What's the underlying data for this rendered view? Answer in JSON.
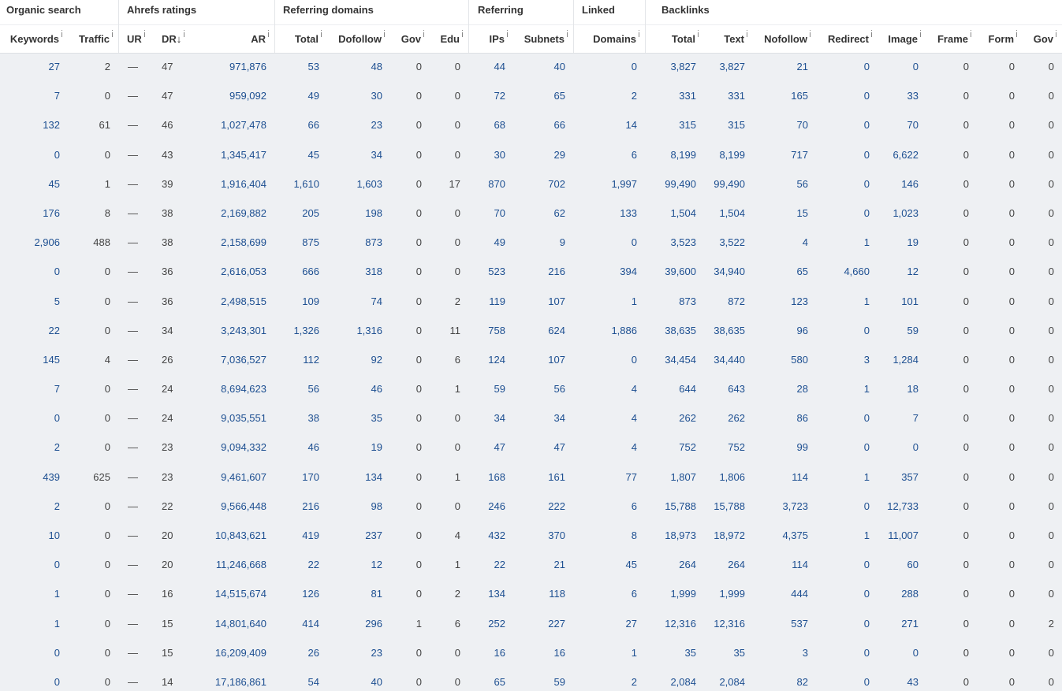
{
  "table": {
    "groups": [
      "Organic search",
      "Ahrefs ratings",
      "Referring domains",
      "Referring",
      "Linked",
      "Backlinks"
    ],
    "columns": [
      "Keywords",
      "Traffic",
      "UR",
      "DR↓",
      "AR",
      "Total",
      "Dofollow",
      "Gov",
      "Edu",
      "IPs",
      "Subnets",
      "Domains",
      "Total",
      "Text",
      "Nofollow",
      "Redirect",
      "Image",
      "Frame",
      "Form",
      "Gov"
    ],
    "rows": [
      [
        "27",
        "2",
        "—",
        "47",
        "971,876",
        "53",
        "48",
        "0",
        "0",
        "44",
        "40",
        "0",
        "3,827",
        "3,827",
        "21",
        "0",
        "0",
        "0",
        "0",
        "0"
      ],
      [
        "7",
        "0",
        "—",
        "47",
        "959,092",
        "49",
        "30",
        "0",
        "0",
        "72",
        "65",
        "2",
        "331",
        "331",
        "165",
        "0",
        "33",
        "0",
        "0",
        "0"
      ],
      [
        "132",
        "61",
        "—",
        "46",
        "1,027,478",
        "66",
        "23",
        "0",
        "0",
        "68",
        "66",
        "14",
        "315",
        "315",
        "70",
        "0",
        "70",
        "0",
        "0",
        "0"
      ],
      [
        "0",
        "0",
        "—",
        "43",
        "1,345,417",
        "45",
        "34",
        "0",
        "0",
        "30",
        "29",
        "6",
        "8,199",
        "8,199",
        "717",
        "0",
        "6,622",
        "0",
        "0",
        "0"
      ],
      [
        "45",
        "1",
        "—",
        "39",
        "1,916,404",
        "1,610",
        "1,603",
        "0",
        "17",
        "870",
        "702",
        "1,997",
        "99,490",
        "99,490",
        "56",
        "0",
        "146",
        "0",
        "0",
        "0"
      ],
      [
        "176",
        "8",
        "—",
        "38",
        "2,169,882",
        "205",
        "198",
        "0",
        "0",
        "70",
        "62",
        "133",
        "1,504",
        "1,504",
        "15",
        "0",
        "1,023",
        "0",
        "0",
        "0"
      ],
      [
        "2,906",
        "488",
        "—",
        "38",
        "2,158,699",
        "875",
        "873",
        "0",
        "0",
        "49",
        "9",
        "0",
        "3,523",
        "3,522",
        "4",
        "1",
        "19",
        "0",
        "0",
        "0"
      ],
      [
        "0",
        "0",
        "—",
        "36",
        "2,616,053",
        "666",
        "318",
        "0",
        "0",
        "523",
        "216",
        "394",
        "39,600",
        "34,940",
        "65",
        "4,660",
        "12",
        "0",
        "0",
        "0"
      ],
      [
        "5",
        "0",
        "—",
        "36",
        "2,498,515",
        "109",
        "74",
        "0",
        "2",
        "119",
        "107",
        "1",
        "873",
        "872",
        "123",
        "1",
        "101",
        "0",
        "0",
        "0"
      ],
      [
        "22",
        "0",
        "—",
        "34",
        "3,243,301",
        "1,326",
        "1,316",
        "0",
        "11",
        "758",
        "624",
        "1,886",
        "38,635",
        "38,635",
        "96",
        "0",
        "59",
        "0",
        "0",
        "0"
      ],
      [
        "145",
        "4",
        "—",
        "26",
        "7,036,527",
        "112",
        "92",
        "0",
        "6",
        "124",
        "107",
        "0",
        "34,454",
        "34,440",
        "580",
        "3",
        "1,284",
        "0",
        "0",
        "0"
      ],
      [
        "7",
        "0",
        "—",
        "24",
        "8,694,623",
        "56",
        "46",
        "0",
        "1",
        "59",
        "56",
        "4",
        "644",
        "643",
        "28",
        "1",
        "18",
        "0",
        "0",
        "0"
      ],
      [
        "0",
        "0",
        "—",
        "24",
        "9,035,551",
        "38",
        "35",
        "0",
        "0",
        "34",
        "34",
        "4",
        "262",
        "262",
        "86",
        "0",
        "7",
        "0",
        "0",
        "0"
      ],
      [
        "2",
        "0",
        "—",
        "23",
        "9,094,332",
        "46",
        "19",
        "0",
        "0",
        "47",
        "47",
        "4",
        "752",
        "752",
        "99",
        "0",
        "0",
        "0",
        "0",
        "0"
      ],
      [
        "439",
        "625",
        "—",
        "23",
        "9,461,607",
        "170",
        "134",
        "0",
        "1",
        "168",
        "161",
        "77",
        "1,807",
        "1,806",
        "114",
        "1",
        "357",
        "0",
        "0",
        "0"
      ],
      [
        "2",
        "0",
        "—",
        "22",
        "9,566,448",
        "216",
        "98",
        "0",
        "0",
        "246",
        "222",
        "6",
        "15,788",
        "15,788",
        "3,723",
        "0",
        "12,733",
        "0",
        "0",
        "0"
      ],
      [
        "10",
        "0",
        "—",
        "20",
        "10,843,621",
        "419",
        "237",
        "0",
        "4",
        "432",
        "370",
        "8",
        "18,973",
        "18,972",
        "4,375",
        "1",
        "11,007",
        "0",
        "0",
        "0"
      ],
      [
        "0",
        "0",
        "—",
        "20",
        "11,246,668",
        "22",
        "12",
        "0",
        "1",
        "22",
        "21",
        "45",
        "264",
        "264",
        "114",
        "0",
        "60",
        "0",
        "0",
        "0"
      ],
      [
        "1",
        "0",
        "—",
        "16",
        "14,515,674",
        "126",
        "81",
        "0",
        "2",
        "134",
        "118",
        "6",
        "1,999",
        "1,999",
        "444",
        "0",
        "288",
        "0",
        "0",
        "0"
      ],
      [
        "1",
        "0",
        "—",
        "15",
        "14,801,640",
        "414",
        "296",
        "1",
        "6",
        "252",
        "227",
        "27",
        "12,316",
        "12,316",
        "537",
        "0",
        "271",
        "0",
        "0",
        "2"
      ],
      [
        "0",
        "0",
        "—",
        "15",
        "16,209,409",
        "26",
        "23",
        "0",
        "0",
        "16",
        "16",
        "1",
        "35",
        "35",
        "3",
        "0",
        "0",
        "0",
        "0",
        "0"
      ],
      [
        "0",
        "0",
        "—",
        "14",
        "17,186,861",
        "54",
        "40",
        "0",
        "0",
        "65",
        "59",
        "2",
        "2,084",
        "2,084",
        "82",
        "0",
        "43",
        "0",
        "0",
        "0"
      ]
    ]
  }
}
